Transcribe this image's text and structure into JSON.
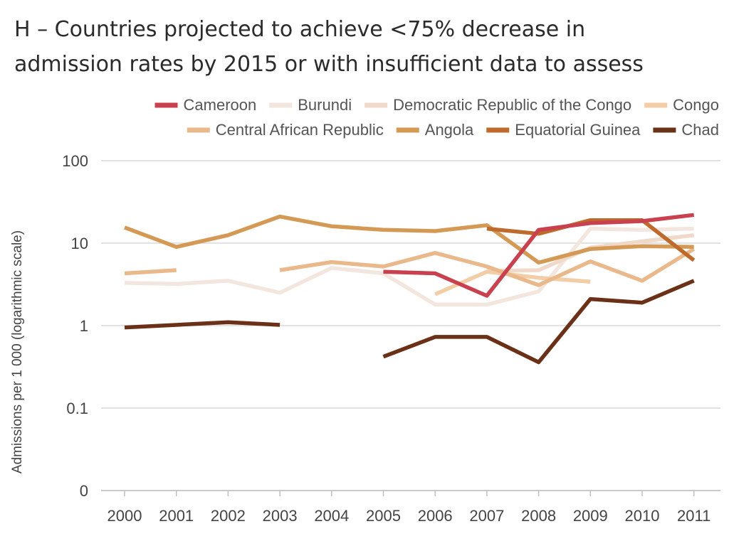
{
  "chart_data": {
    "type": "line",
    "title_lines": [
      "H – Countries projected to achieve <75% decrease in",
      "admission rates by 2015 or with insufficient data to assess"
    ],
    "xlabel": "",
    "ylabel": "Admissions per 1 000 (logarithmic scale)",
    "y_scale": "log",
    "ylim": [
      0.01,
      100
    ],
    "y_ticks": [
      {
        "value": 100,
        "label": "100"
      },
      {
        "value": 10,
        "label": "10"
      },
      {
        "value": 1,
        "label": "1"
      },
      {
        "value": 0.1,
        "label": "0.1"
      },
      {
        "value": 0.01,
        "label": "0"
      }
    ],
    "x": [
      2000,
      2001,
      2002,
      2003,
      2004,
      2005,
      2006,
      2007,
      2008,
      2009,
      2010,
      2011
    ],
    "x_tick_labels": [
      "2000",
      "2001",
      "2002",
      "2003",
      "2004",
      "2005",
      "2006",
      "2007",
      "2008",
      "2009",
      "2010",
      "2011"
    ],
    "grid": true,
    "legend_position": "top-right",
    "legend_rows": [
      [
        "Cameroon",
        "Burundi",
        "Democratic Republic of the Congo",
        "Congo"
      ],
      [
        "Central African Republic",
        "Angola",
        "Equatorial Guinea",
        "Chad"
      ]
    ],
    "series": [
      {
        "name": "Burundi",
        "color": "#f2e6df",
        "values": [
          3.3,
          3.2,
          3.5,
          2.5,
          5.0,
          4.3,
          1.8,
          1.8,
          2.6,
          15,
          14.5,
          15
        ]
      },
      {
        "name": "Democratic Republic of the Congo",
        "color": "#f0d9c8",
        "values": [
          null,
          null,
          null,
          null,
          null,
          null,
          null,
          4.6,
          4.7,
          8.8,
          10.5,
          12.5
        ]
      },
      {
        "name": "Congo",
        "color": "#f2cda6",
        "values": [
          null,
          null,
          null,
          null,
          null,
          null,
          2.4,
          4.5,
          3.8,
          3.4,
          null,
          null
        ]
      },
      {
        "name": "Central African Republic",
        "color": "#e9b98b",
        "values": [
          4.3,
          4.7,
          null,
          4.7,
          5.9,
          5.2,
          7.6,
          5.2,
          3.1,
          6.0,
          3.5,
          8.5
        ]
      },
      {
        "name": "Angola",
        "color": "#d49a55",
        "values": [
          15.5,
          9.0,
          12.5,
          21,
          16,
          14.5,
          14,
          16.5,
          5.8,
          8.5,
          9.2,
          9.0
        ]
      },
      {
        "name": "Equatorial Guinea",
        "color": "#bd6a2c",
        "values": [
          null,
          null,
          null,
          null,
          null,
          null,
          null,
          15,
          13,
          19,
          19,
          6.2
        ]
      },
      {
        "name": "Cameroon",
        "color": "#c9404f",
        "values": [
          null,
          null,
          null,
          null,
          null,
          4.5,
          4.3,
          2.3,
          14.5,
          17.5,
          18.5,
          22
        ]
      },
      {
        "name": "Chad",
        "color": "#6b3118",
        "values": [
          0.95,
          1.02,
          1.1,
          1.02,
          null,
          0.42,
          0.73,
          0.73,
          0.36,
          2.1,
          1.9,
          3.5
        ]
      }
    ]
  }
}
